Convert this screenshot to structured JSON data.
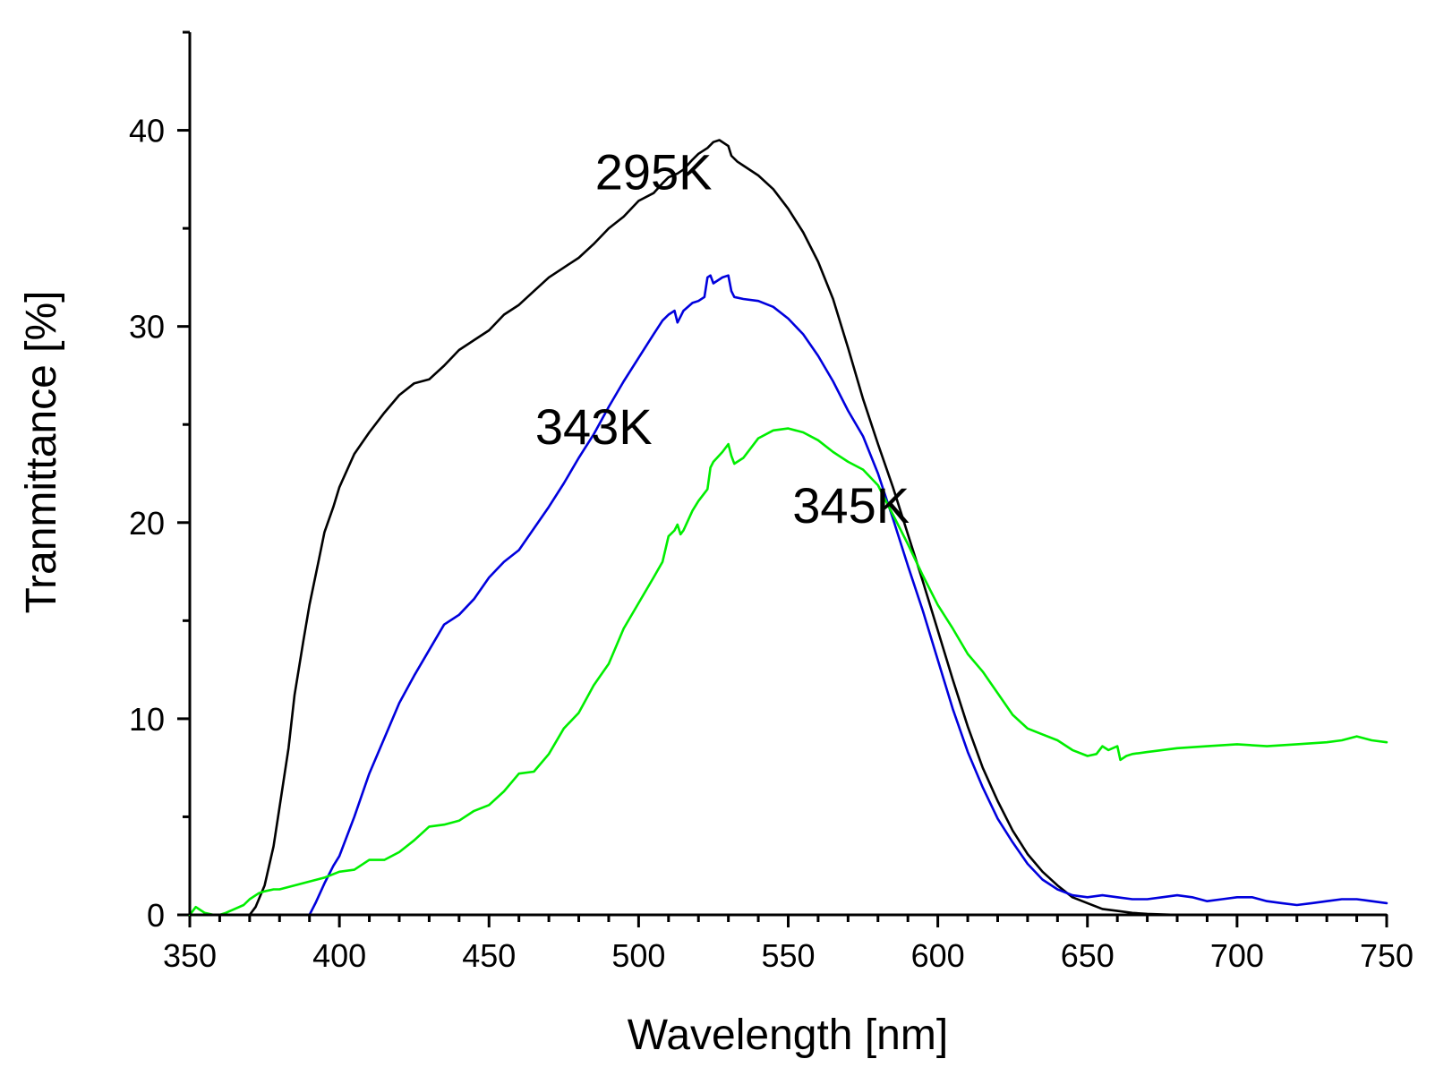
{
  "chart_data": {
    "type": "line",
    "title": "",
    "xlabel": "Wavelength [nm]",
    "ylabel": "Tranmittance [%]",
    "xlim": [
      350,
      750
    ],
    "ylim": [
      0,
      45
    ],
    "x_ticks": [
      350,
      400,
      450,
      500,
      550,
      600,
      650,
      700,
      750
    ],
    "y_ticks": [
      0,
      10,
      20,
      30,
      40
    ],
    "grid": false,
    "legend": "none",
    "series": [
      {
        "name": "295K",
        "color": "#000000",
        "x": [
          370,
          372,
          375,
          378,
          380,
          383,
          385,
          388,
          390,
          393,
          395,
          398,
          400,
          405,
          410,
          415,
          420,
          425,
          430,
          435,
          440,
          445,
          450,
          455,
          460,
          465,
          470,
          475,
          480,
          485,
          490,
          495,
          500,
          505,
          508,
          510,
          513,
          515,
          518,
          520,
          523,
          525,
          527,
          530,
          531,
          533,
          535,
          540,
          545,
          550,
          555,
          560,
          565,
          570,
          575,
          580,
          585,
          590,
          595,
          600,
          605,
          610,
          615,
          620,
          625,
          630,
          635,
          640,
          645,
          650,
          655,
          660,
          665,
          670,
          680,
          690,
          700,
          710,
          720,
          730,
          740,
          750
        ],
        "y": [
          0,
          0.4,
          1.5,
          3.5,
          5.5,
          8.5,
          11.2,
          14.0,
          15.8,
          18.0,
          19.5,
          20.8,
          21.8,
          23.5,
          24.6,
          25.6,
          26.5,
          27.1,
          27.3,
          28.0,
          28.8,
          29.3,
          29.8,
          30.6,
          31.1,
          31.8,
          32.5,
          33.0,
          33.5,
          34.2,
          35.0,
          35.6,
          36.4,
          36.8,
          37.3,
          37.6,
          37.8,
          38.0,
          38.5,
          38.8,
          39.1,
          39.4,
          39.5,
          39.2,
          38.7,
          38.4,
          38.2,
          37.7,
          37.0,
          36.0,
          34.8,
          33.3,
          31.4,
          28.9,
          26.3,
          24.0,
          21.8,
          19.4,
          17.0,
          14.5,
          12.0,
          9.6,
          7.5,
          5.8,
          4.3,
          3.1,
          2.2,
          1.5,
          0.9,
          0.6,
          0.3,
          0.2,
          0.1,
          0.05,
          0,
          0,
          0,
          0,
          0,
          0,
          0,
          0
        ]
      },
      {
        "name": "343K",
        "color": "#0000dd",
        "x": [
          390,
          392,
          395,
          398,
          400,
          405,
          410,
          415,
          420,
          425,
          430,
          435,
          440,
          445,
          450,
          455,
          460,
          465,
          470,
          475,
          480,
          485,
          490,
          495,
          500,
          505,
          508,
          510,
          512,
          513,
          514,
          515,
          518,
          520,
          522,
          523,
          524,
          525,
          528,
          530,
          531,
          532,
          535,
          540,
          545,
          550,
          555,
          560,
          565,
          570,
          575,
          580,
          585,
          590,
          595,
          600,
          605,
          610,
          615,
          620,
          625,
          630,
          635,
          640,
          645,
          650,
          655,
          660,
          665,
          670,
          675,
          680,
          685,
          690,
          695,
          700,
          705,
          710,
          715,
          720,
          725,
          730,
          735,
          740,
          745,
          750
        ],
        "y": [
          0,
          0.6,
          1.6,
          2.5,
          3.0,
          5.0,
          7.2,
          9.0,
          10.8,
          12.2,
          13.5,
          14.8,
          15.3,
          16.1,
          17.2,
          18.0,
          18.6,
          19.7,
          20.8,
          22.0,
          23.3,
          24.5,
          25.9,
          27.2,
          28.4,
          29.6,
          30.3,
          30.6,
          30.8,
          30.2,
          30.5,
          30.8,
          31.2,
          31.3,
          31.5,
          32.5,
          32.6,
          32.2,
          32.5,
          32.6,
          31.8,
          31.5,
          31.4,
          31.3,
          31.0,
          30.4,
          29.6,
          28.5,
          27.2,
          25.7,
          24.4,
          22.5,
          20.2,
          17.8,
          15.5,
          13.0,
          10.5,
          8.3,
          6.5,
          4.9,
          3.7,
          2.6,
          1.8,
          1.3,
          1.0,
          0.9,
          1.0,
          0.9,
          0.8,
          0.8,
          0.9,
          1.0,
          0.9,
          0.7,
          0.8,
          0.9,
          0.9,
          0.7,
          0.6,
          0.5,
          0.6,
          0.7,
          0.8,
          0.8,
          0.7,
          0.6
        ]
      },
      {
        "name": "345K",
        "color": "#00ee00",
        "x": [
          350,
          352,
          355,
          358,
          360,
          362,
          365,
          368,
          370,
          373,
          375,
          378,
          380,
          385,
          390,
          395,
          400,
          405,
          410,
          415,
          420,
          425,
          430,
          435,
          440,
          445,
          450,
          455,
          460,
          465,
          470,
          475,
          480,
          485,
          490,
          495,
          500,
          505,
          508,
          510,
          512,
          513,
          514,
          515,
          518,
          520,
          522,
          523,
          524,
          525,
          528,
          530,
          531,
          532,
          535,
          540,
          545,
          550,
          555,
          560,
          565,
          570,
          575,
          580,
          585,
          590,
          595,
          600,
          605,
          610,
          615,
          620,
          625,
          630,
          635,
          640,
          645,
          650,
          653,
          655,
          657,
          660,
          661,
          663,
          665,
          670,
          680,
          690,
          700,
          710,
          720,
          730,
          735,
          740,
          745,
          750
        ],
        "y": [
          0,
          0.4,
          0.1,
          0,
          0,
          0.1,
          0.3,
          0.5,
          0.8,
          1.1,
          1.2,
          1.3,
          1.3,
          1.5,
          1.7,
          1.9,
          2.2,
          2.3,
          2.8,
          2.8,
          3.2,
          3.8,
          4.5,
          4.6,
          4.8,
          5.3,
          5.6,
          6.3,
          7.2,
          7.3,
          8.2,
          9.5,
          10.3,
          11.7,
          12.8,
          14.6,
          15.9,
          17.2,
          18.0,
          19.3,
          19.6,
          19.9,
          19.4,
          19.6,
          20.6,
          21.1,
          21.5,
          21.7,
          22.8,
          23.1,
          23.6,
          24.0,
          23.4,
          23.0,
          23.3,
          24.3,
          24.7,
          24.8,
          24.6,
          24.2,
          23.6,
          23.1,
          22.7,
          21.9,
          20.4,
          18.9,
          17.3,
          15.8,
          14.6,
          13.3,
          12.4,
          11.3,
          10.2,
          9.5,
          9.2,
          8.9,
          8.4,
          8.1,
          8.2,
          8.6,
          8.4,
          8.6,
          7.9,
          8.1,
          8.2,
          8.3,
          8.5,
          8.6,
          8.7,
          8.6,
          8.7,
          8.8,
          8.9,
          9.1,
          8.9,
          8.8
        ]
      }
    ],
    "annotations": [
      {
        "text": "295K",
        "series": "295K",
        "x": 505,
        "y": 37
      },
      {
        "text": "343K",
        "series": "343K",
        "x": 485,
        "y": 24
      },
      {
        "text": "345K",
        "series": "345K",
        "x": 571,
        "y": 20
      }
    ]
  }
}
